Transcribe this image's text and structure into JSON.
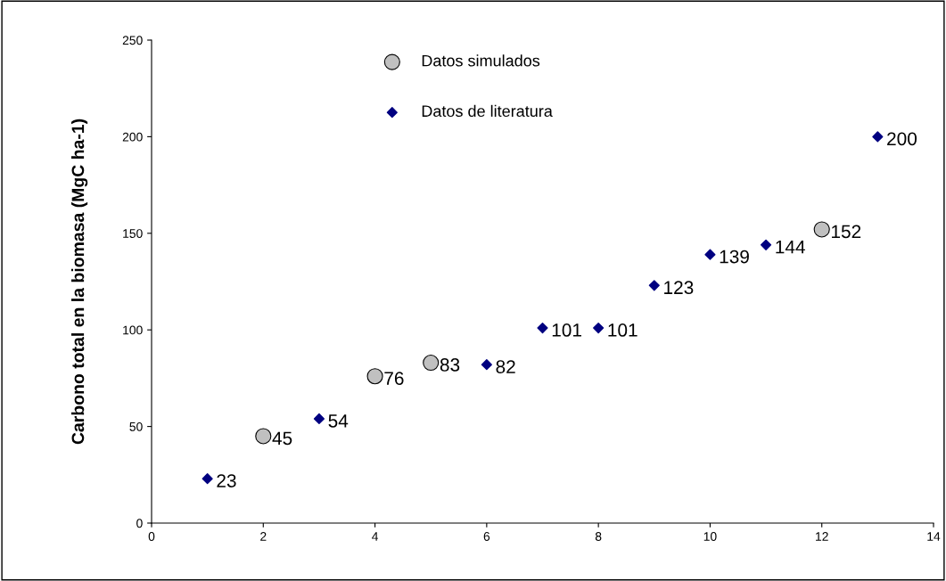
{
  "chart_data": {
    "type": "scatter",
    "ylabel": "Carbono total en la biomasa (MgC ha-1)",
    "xlim": [
      0,
      14
    ],
    "xticks": [
      0,
      2,
      4,
      6,
      8,
      10,
      12,
      14
    ],
    "ylim": [
      0,
      250
    ],
    "yticks": [
      0,
      50,
      100,
      150,
      200,
      250
    ],
    "grid": false,
    "legend": "top",
    "data_labels": true,
    "series": [
      {
        "name": "Datos simulados",
        "color": "#c0c0c0",
        "marker": "circle",
        "x": [
          2,
          4,
          5,
          12
        ],
        "values": [
          45,
          76,
          83,
          152
        ]
      },
      {
        "name": "Datos de literatura",
        "color": "#000080",
        "marker": "diamond",
        "x": [
          1,
          3,
          6,
          7,
          8,
          9,
          10,
          11,
          13
        ],
        "values": [
          23,
          54,
          82,
          101,
          101,
          123,
          139,
          144,
          200
        ]
      }
    ]
  }
}
